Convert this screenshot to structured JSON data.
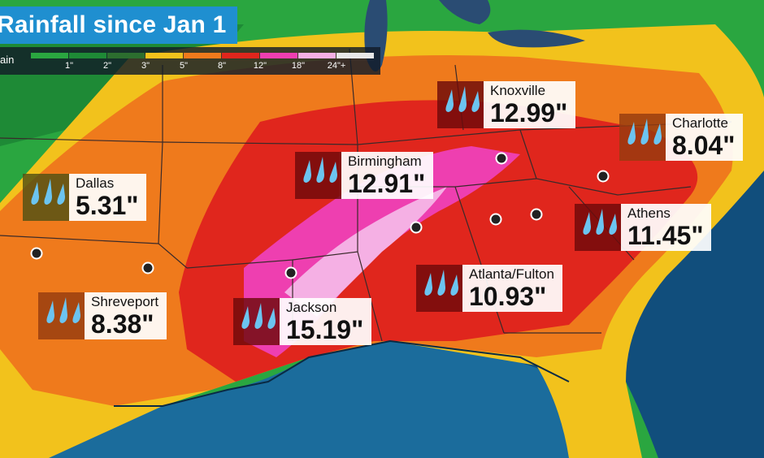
{
  "title": "Rainfall since Jan 1",
  "legend": {
    "label": "ain",
    "bins": [
      {
        "color": "#2aa640"
      },
      {
        "color": "#1e8a36",
        "label": "1\""
      },
      {
        "color": "#2c6e2f",
        "label": "2\""
      },
      {
        "color": "#f2c21c",
        "label": "3\""
      },
      {
        "color": "#ef7a1c",
        "label": "5\""
      },
      {
        "color": "#e0261d",
        "label": "8\""
      },
      {
        "color": "#ee3fb0",
        "label": "12\""
      },
      {
        "color": "#f5b0e4",
        "label": "18\""
      },
      {
        "color": "#e8e8e8",
        "label": "24\"+"
      }
    ]
  },
  "callouts": [
    {
      "city": "Knoxville",
      "amount": "12.99\"",
      "tone": "red"
    },
    {
      "city": "Charlotte",
      "amount": "8.04\"",
      "tone": "orange"
    },
    {
      "city": "Birmingham",
      "amount": "12.91\"",
      "tone": "red"
    },
    {
      "city": "Dallas",
      "amount": "5.31\"",
      "tone": "green"
    },
    {
      "city": "Athens",
      "amount": "11.45\"",
      "tone": "red"
    },
    {
      "city": "Atlanta/Fulton",
      "amount": "10.93\"",
      "tone": "red"
    },
    {
      "city": "Shreveport",
      "amount": "8.38\"",
      "tone": "orange"
    },
    {
      "city": "Jackson",
      "amount": "15.19\"",
      "tone": "red"
    }
  ],
  "colors": {
    "title_bg": "#1f8fd0",
    "ocean": "#114e7c",
    "gulf": "#1b6c9c",
    "lakes": "#2a4c73",
    "state_lines": "#3a2a2a"
  }
}
